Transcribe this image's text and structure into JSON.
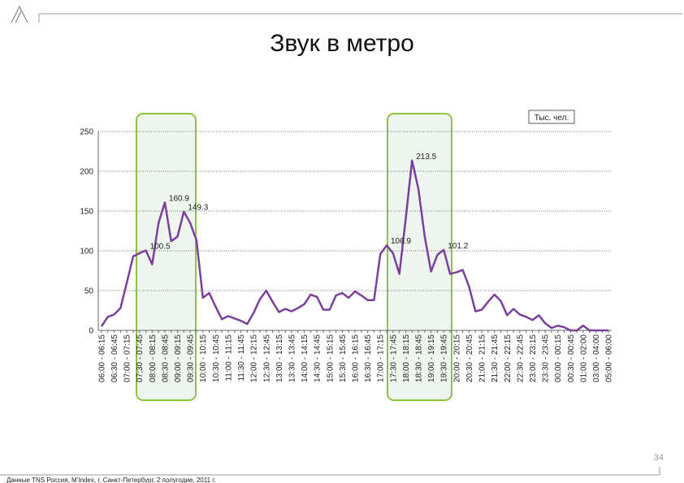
{
  "title": "Звук в метро",
  "page_number": "34",
  "footer": "Данные TNS Россия, M'Index, г. Санкт-Петербург,  2 полугодие, 2011 г.",
  "chart_data": {
    "type": "line",
    "unit": "Тыс. чел.",
    "categories": [
      "06:00 - 06:15",
      null,
      "06:30 - 06:45",
      null,
      "07:00 - 07:15",
      null,
      "07:30 - 07:45",
      null,
      "08:00 - 08:15",
      null,
      "08:30 - 08:45",
      null,
      "09:00 - 09:15",
      null,
      "09:30 - 09:45",
      null,
      "10:00 - 10:15",
      null,
      "10:30 - 10:45",
      null,
      "11:00 - 11:15",
      null,
      "11:30 - 11:45",
      null,
      "12:00 - 12:15",
      null,
      "12:30 - 12:45",
      null,
      "13:00 - 13:15",
      null,
      "13:30 - 13:45",
      null,
      "14:00 - 14:15",
      null,
      "14:30 - 14:45",
      null,
      "15:00 - 15:15",
      null,
      "15:30 - 15:45",
      null,
      "16:00 - 16:15",
      null,
      "16:30 - 16:45",
      null,
      "17:00 - 17:15",
      null,
      "17:30 - 17:45",
      null,
      "18:00 - 18:15",
      null,
      "18:30 - 18:45",
      null,
      "19:00 - 19:15",
      null,
      "19:30 - 19:45",
      null,
      "20:00 - 20:15",
      null,
      "20:30 - 20:45",
      null,
      "21:00 - 21:15",
      null,
      "21:30 - 21:45",
      null,
      "22:00 - 22:15",
      null,
      "22:30 - 22:45",
      null,
      "23:00 - 23:15",
      null,
      "23:30 - 23:45",
      null,
      "00:00 - 00:15",
      null,
      "00:30 - 00:45",
      null,
      "01:00 - 02:00",
      null,
      "03:00 - 04:00",
      null,
      "05:00 - 06:00"
    ],
    "series": [
      {
        "name": "Звук в метро",
        "color": "#7b3f9e",
        "values": [
          5,
          17,
          20,
          28,
          60,
          93,
          97,
          100.5,
          83,
          135,
          160.9,
          112,
          118,
          149.3,
          135,
          113,
          41,
          47,
          30,
          14,
          18,
          15,
          12,
          8,
          22,
          39,
          50,
          36,
          23,
          27,
          24,
          28,
          33,
          45,
          42,
          26,
          26,
          44,
          47,
          41,
          49,
          44,
          38,
          38,
          96,
          106.9,
          97,
          71,
          140,
          213.5,
          178,
          118,
          74,
          95,
          101.2,
          71,
          73,
          76,
          55,
          24,
          26,
          36,
          45,
          37,
          19,
          27,
          20,
          17,
          13,
          19,
          9,
          3,
          6,
          4,
          0,
          0,
          6,
          0,
          0,
          0,
          0
        ],
        "value_labels": [
          null,
          null,
          null,
          null,
          null,
          null,
          null,
          "100.5",
          null,
          null,
          "160.9",
          null,
          null,
          "149.3",
          null,
          null,
          null,
          null,
          null,
          null,
          null,
          null,
          null,
          null,
          null,
          null,
          null,
          null,
          null,
          null,
          null,
          null,
          null,
          null,
          null,
          null,
          null,
          null,
          null,
          null,
          null,
          null,
          null,
          null,
          null,
          "106.9",
          null,
          null,
          null,
          "213.5",
          null,
          null,
          null,
          null,
          "101.2",
          null,
          null,
          null,
          null,
          null,
          null,
          null,
          null,
          null,
          null,
          null,
          null,
          null,
          null,
          null,
          null,
          null,
          null,
          null,
          null,
          null,
          null,
          null,
          null,
          null,
          null
        ]
      }
    ],
    "ylim": [
      0,
      250
    ],
    "yticks": [
      0,
      50,
      100,
      150,
      200,
      250
    ],
    "grid": true
  }
}
